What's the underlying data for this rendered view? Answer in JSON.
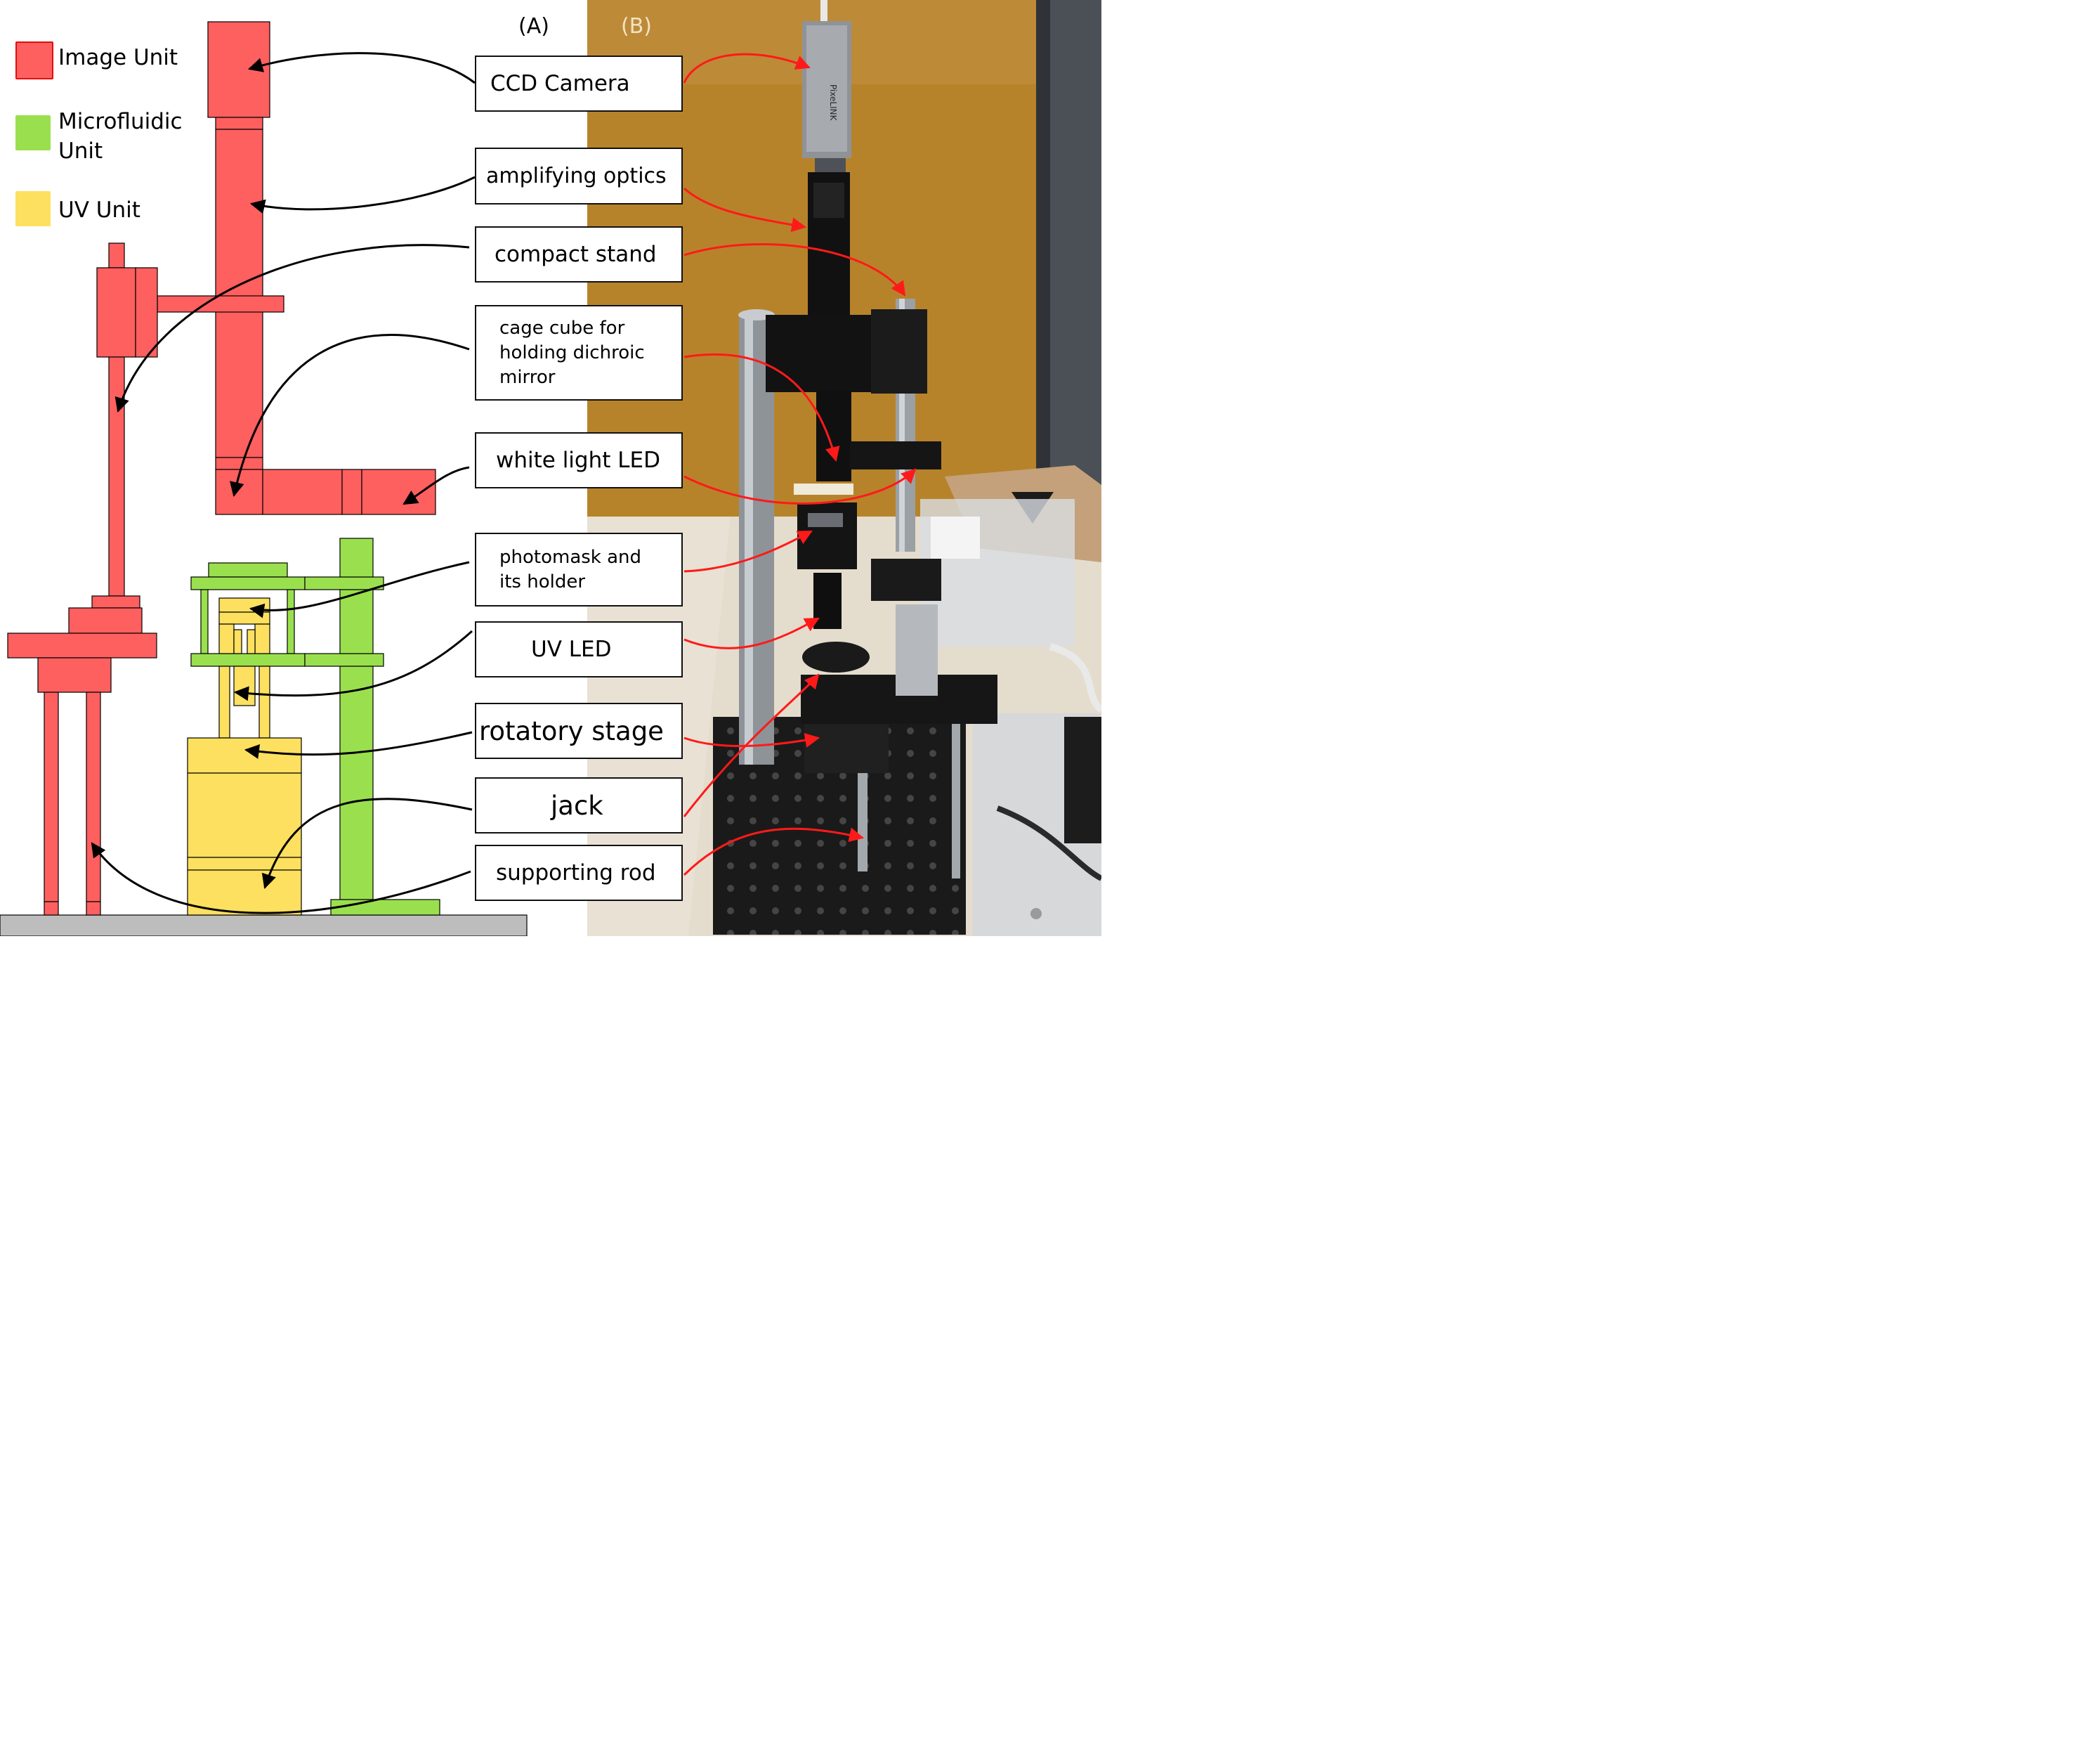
{
  "panels": {
    "left_label": "(A)",
    "right_label": "(B)"
  },
  "legend": [
    {
      "label": "Image Unit",
      "color": "#fe5f5f"
    },
    {
      "label": "Microfluidic\nUnit",
      "color": "#9ae04e"
    },
    {
      "label": "UV Unit",
      "color": "#fde05f"
    }
  ],
  "callouts": [
    "CCD Camera",
    "amplifying optics",
    "compact stand",
    "cage cube for\nholding dichroic\nmirror",
    "white light LED",
    "photomask and\nits holder",
    "UV LED",
    "rotatory stage",
    "jack",
    "supporting rod"
  ],
  "colors": {
    "image_unit": "#fe5f5f",
    "microfluidic_unit": "#9ae04e",
    "uv_unit": "#fde05f",
    "base": "#bdbdbd",
    "photo_backdrop": "#b7832a",
    "arrow_left": "#000000",
    "arrow_right": "#ff1a1a"
  },
  "camera_brand": "PixeLINK"
}
